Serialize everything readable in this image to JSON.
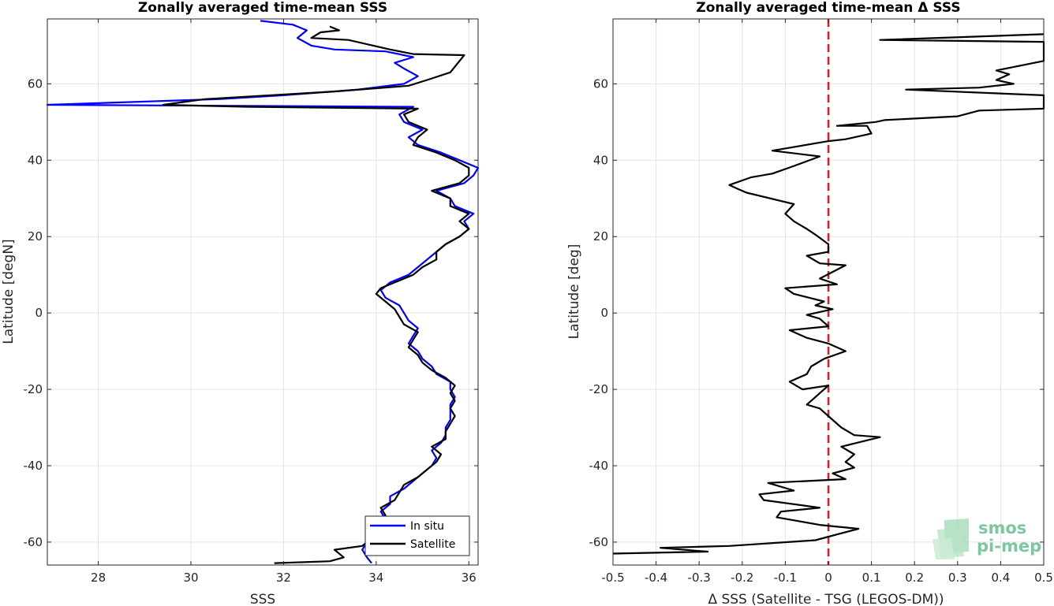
{
  "chart_data": [
    {
      "type": "line",
      "title": "Zonally averaged time-mean SSS",
      "xlabel": "SSS",
      "ylabel": "Latitude [degN]",
      "xlim": [
        26.9,
        36.2
      ],
      "ylim": [
        -66,
        77
      ],
      "xticks": [
        28,
        30,
        32,
        34,
        36
      ],
      "yticks": [
        -60,
        -40,
        -20,
        0,
        20,
        40,
        60
      ],
      "grid": true,
      "legend_position": "bottom-right",
      "series": [
        {
          "name": "In situ",
          "color": "#0000ff",
          "points": [
            [
              33.9,
              -65.5
            ],
            [
              33.8,
              -64
            ],
            [
              33.7,
              -62
            ],
            [
              33.8,
              -60
            ],
            [
              33.9,
              -58
            ],
            [
              34.0,
              -56
            ],
            [
              34.2,
              -54
            ],
            [
              34.1,
              -52
            ],
            [
              34.3,
              -50
            ],
            [
              34.3,
              -48
            ],
            [
              34.6,
              -46
            ],
            [
              34.8,
              -44
            ],
            [
              35.0,
              -42
            ],
            [
              35.2,
              -40
            ],
            [
              35.3,
              -38
            ],
            [
              35.2,
              -36
            ],
            [
              35.4,
              -34
            ],
            [
              35.5,
              -32
            ],
            [
              35.5,
              -30
            ],
            [
              35.6,
              -28
            ],
            [
              35.6,
              -26
            ],
            [
              35.6,
              -24
            ],
            [
              35.7,
              -22
            ],
            [
              35.6,
              -20
            ],
            [
              35.6,
              -18
            ],
            [
              35.3,
              -16
            ],
            [
              35.2,
              -14
            ],
            [
              35.0,
              -12
            ],
            [
              34.9,
              -10
            ],
            [
              34.7,
              -8
            ],
            [
              34.8,
              -6
            ],
            [
              34.9,
              -4
            ],
            [
              34.7,
              -2
            ],
            [
              34.6,
              0
            ],
            [
              34.5,
              2
            ],
            [
              34.2,
              4
            ],
            [
              34.1,
              6
            ],
            [
              34.3,
              8
            ],
            [
              34.7,
              10
            ],
            [
              34.9,
              12
            ],
            [
              35.1,
              14
            ],
            [
              35.3,
              16
            ],
            [
              35.5,
              18
            ],
            [
              35.8,
              20
            ],
            [
              36.0,
              22
            ],
            [
              35.9,
              24
            ],
            [
              36.1,
              26
            ],
            [
              35.7,
              28
            ],
            [
              35.6,
              30
            ],
            [
              35.3,
              32
            ],
            [
              35.9,
              34
            ],
            [
              36.1,
              36
            ],
            [
              36.2,
              38
            ],
            [
              35.8,
              40
            ],
            [
              35.4,
              42
            ],
            [
              34.9,
              44
            ],
            [
              34.7,
              46
            ],
            [
              35.0,
              48
            ],
            [
              34.6,
              50
            ],
            [
              34.5,
              52
            ],
            [
              34.8,
              54
            ],
            [
              26.9,
              54.5
            ],
            [
              30.6,
              56
            ],
            [
              32.0,
              57
            ],
            [
              33.6,
              58.5
            ],
            [
              34.6,
              60
            ],
            [
              34.9,
              62
            ],
            [
              34.6,
              64
            ],
            [
              34.4,
              65.5
            ],
            [
              34.8,
              67
            ],
            [
              34.2,
              68.5
            ],
            [
              33.1,
              69
            ],
            [
              32.6,
              70
            ],
            [
              32.3,
              72
            ],
            [
              32.5,
              74
            ],
            [
              32.2,
              75.5
            ],
            [
              31.5,
              76.5
            ]
          ]
        },
        {
          "name": "Satellite",
          "color": "#000000",
          "points": [
            [
              31.8,
              -65.5
            ],
            [
              33.0,
              -65
            ],
            [
              33.3,
              -64
            ],
            [
              33.1,
              -62
            ],
            [
              33.7,
              -61
            ],
            [
              33.9,
              -59
            ],
            [
              34.0,
              -57
            ],
            [
              34.1,
              -55
            ],
            [
              34.2,
              -53
            ],
            [
              34.1,
              -51
            ],
            [
              34.4,
              -49
            ],
            [
              34.5,
              -47
            ],
            [
              34.6,
              -45
            ],
            [
              34.9,
              -43
            ],
            [
              35.1,
              -41
            ],
            [
              35.3,
              -39
            ],
            [
              35.4,
              -37
            ],
            [
              35.2,
              -35
            ],
            [
              35.5,
              -33
            ],
            [
              35.5,
              -31
            ],
            [
              35.6,
              -29
            ],
            [
              35.7,
              -27
            ],
            [
              35.6,
              -25
            ],
            [
              35.7,
              -23
            ],
            [
              35.6,
              -21
            ],
            [
              35.7,
              -19
            ],
            [
              35.5,
              -17
            ],
            [
              35.2,
              -15
            ],
            [
              35.0,
              -13
            ],
            [
              34.9,
              -11
            ],
            [
              34.7,
              -9
            ],
            [
              34.8,
              -7
            ],
            [
              34.9,
              -5
            ],
            [
              34.6,
              -3
            ],
            [
              34.5,
              -1
            ],
            [
              34.4,
              1
            ],
            [
              34.2,
              3
            ],
            [
              34.0,
              5
            ],
            [
              34.1,
              6.5
            ],
            [
              34.4,
              8
            ],
            [
              34.8,
              10
            ],
            [
              35.0,
              12
            ],
            [
              35.3,
              14
            ],
            [
              35.3,
              16
            ],
            [
              35.5,
              18
            ],
            [
              35.8,
              20
            ],
            [
              36.0,
              22
            ],
            [
              35.8,
              24
            ],
            [
              36.0,
              26
            ],
            [
              35.6,
              28
            ],
            [
              35.6,
              30
            ],
            [
              35.2,
              32
            ],
            [
              35.8,
              34
            ],
            [
              36.0,
              36
            ],
            [
              36.0,
              38
            ],
            [
              35.7,
              40
            ],
            [
              35.3,
              42
            ],
            [
              34.8,
              44
            ],
            [
              34.9,
              46
            ],
            [
              35.1,
              48
            ],
            [
              34.7,
              50
            ],
            [
              34.6,
              52
            ],
            [
              34.9,
              53.5
            ],
            [
              31.2,
              54
            ],
            [
              29.4,
              54.5
            ],
            [
              30.3,
              56
            ],
            [
              33.1,
              58
            ],
            [
              34.7,
              59.5
            ],
            [
              35.1,
              61
            ],
            [
              35.6,
              63
            ],
            [
              35.9,
              67.5
            ],
            [
              34.8,
              67.8
            ],
            [
              34.3,
              69
            ],
            [
              33.4,
              71.5
            ],
            [
              32.6,
              72
            ],
            [
              32.8,
              73.5
            ],
            [
              33.2,
              74
            ],
            [
              33.0,
              75
            ]
          ]
        }
      ]
    },
    {
      "type": "line",
      "title": "Zonally averaged time-mean Δ SSS",
      "xlabel": "Δ SSS (Satellite - TSG (LEGOS-DM))",
      "ylabel": "Latitude [deg]",
      "xlim": [
        -0.5,
        0.5
      ],
      "ylim": [
        -66,
        77
      ],
      "xticks": [
        -0.5,
        -0.4,
        -0.3,
        -0.2,
        -0.1,
        0,
        0.1,
        0.2,
        0.3,
        0.4,
        0.5
      ],
      "yticks": [
        -60,
        -40,
        -20,
        0,
        20,
        40,
        60
      ],
      "grid": true,
      "zero_line": {
        "x": 0,
        "color": "#e41a1c",
        "style": "dashed"
      },
      "series": [
        {
          "color": "#000000",
          "points": [
            [
              -0.5,
              -63
            ],
            [
              -0.28,
              -62.5
            ],
            [
              -0.39,
              -61.5
            ],
            [
              -0.23,
              -61
            ],
            [
              -0.03,
              -59.5
            ],
            [
              0.02,
              -58
            ],
            [
              0.07,
              -56.5
            ],
            [
              -0.02,
              -55.5
            ],
            [
              -0.12,
              -53.5
            ],
            [
              -0.11,
              -52
            ],
            [
              -0.02,
              -51
            ],
            [
              -0.15,
              -49
            ],
            [
              -0.16,
              -47.5
            ],
            [
              -0.08,
              -46.5
            ],
            [
              -0.14,
              -44.5
            ],
            [
              0.04,
              -43.5
            ],
            [
              0.01,
              -42
            ],
            [
              0.06,
              -40.5
            ],
            [
              0.04,
              -39
            ],
            [
              0.06,
              -37
            ],
            [
              0.03,
              -35
            ],
            [
              0.12,
              -32.5
            ],
            [
              0.06,
              -32
            ],
            [
              0.03,
              -30
            ],
            [
              0.0,
              -27
            ],
            [
              -0.02,
              -25
            ],
            [
              -0.05,
              -24
            ],
            [
              -0.03,
              -22
            ],
            [
              0.0,
              -19
            ],
            [
              -0.06,
              -20
            ],
            [
              -0.09,
              -18
            ],
            [
              -0.05,
              -16
            ],
            [
              -0.04,
              -14
            ],
            [
              -0.01,
              -12
            ],
            [
              0.04,
              -10
            ],
            [
              0.0,
              -8
            ],
            [
              -0.05,
              -6.5
            ],
            [
              -0.09,
              -4.5
            ],
            [
              0.0,
              -3.5
            ],
            [
              -0.02,
              -1.5
            ],
            [
              -0.05,
              -0.5
            ],
            [
              0.01,
              1
            ],
            [
              -0.03,
              2
            ],
            [
              -0.01,
              3
            ],
            [
              -0.08,
              5
            ],
            [
              -0.1,
              6.5
            ],
            [
              0.02,
              7.5
            ],
            [
              -0.02,
              9
            ],
            [
              0.04,
              12.5
            ],
            [
              -0.02,
              13
            ],
            [
              -0.05,
              15
            ],
            [
              0.0,
              16
            ],
            [
              0.0,
              18
            ],
            [
              -0.03,
              20.5
            ],
            [
              -0.05,
              22
            ],
            [
              -0.08,
              24
            ],
            [
              -0.1,
              26
            ],
            [
              -0.08,
              28.5
            ],
            [
              -0.19,
              31.5
            ],
            [
              -0.21,
              32.5
            ],
            [
              -0.23,
              33.5
            ],
            [
              -0.18,
              35.5
            ],
            [
              -0.13,
              36.5
            ],
            [
              -0.08,
              38.5
            ],
            [
              -0.02,
              41
            ],
            [
              -0.13,
              42.5
            ],
            [
              0.0,
              45
            ],
            [
              0.04,
              45.5
            ],
            [
              0.1,
              47
            ],
            [
              0.09,
              49
            ],
            [
              0.02,
              49
            ],
            [
              0.11,
              50
            ],
            [
              0.13,
              50.5
            ],
            [
              0.3,
              51.5
            ],
            [
              0.35,
              53
            ],
            [
              0.5,
              53.5
            ],
            [
              0.5,
              57
            ],
            [
              0.18,
              58.5
            ],
            [
              0.35,
              59
            ],
            [
              0.43,
              60
            ],
            [
              0.39,
              61
            ],
            [
              0.42,
              62.5
            ],
            [
              0.39,
              63.5
            ],
            [
              0.5,
              66
            ],
            [
              0.5,
              71
            ],
            [
              0.12,
              71.5
            ],
            [
              0.5,
              73
            ]
          ]
        }
      ]
    }
  ],
  "legend": {
    "items": [
      "In situ",
      "Satellite"
    ]
  },
  "logo": {
    "line1": "smos",
    "line2": "pi-mep"
  }
}
